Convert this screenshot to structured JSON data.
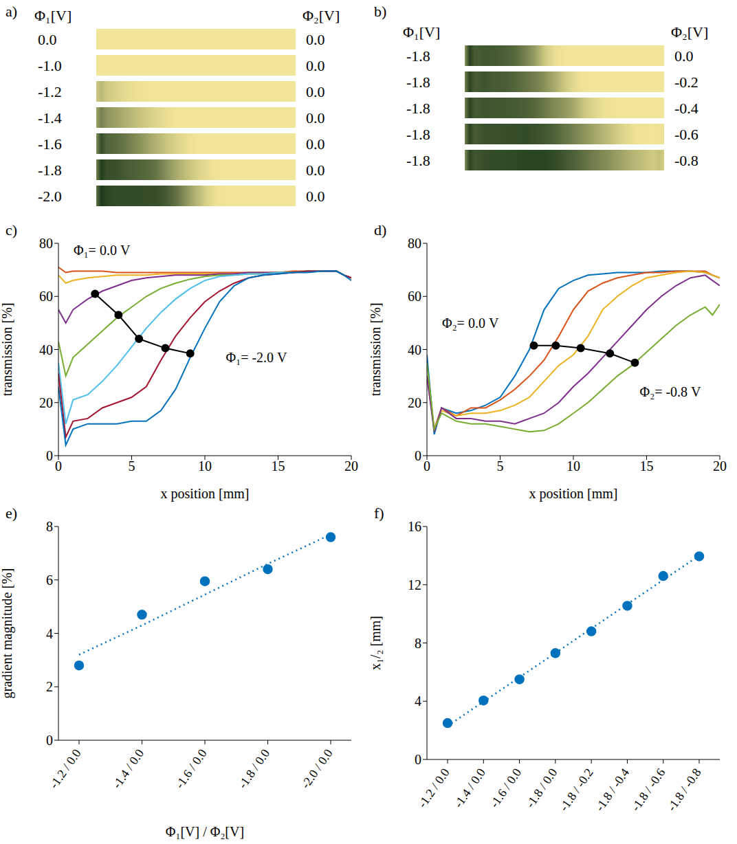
{
  "strip_panels": [
    {
      "panel": "a)",
      "left_header": "Φ₁[V]",
      "right_header": "Φ₂[V]",
      "rows": [
        [
          "0.0",
          "0.0"
        ],
        [
          "-1.0",
          "0.0"
        ],
        [
          "-1.2",
          "0.0"
        ],
        [
          "-1.4",
          "0.0"
        ],
        [
          "-1.6",
          "0.0"
        ],
        [
          "-1.8",
          "0.0"
        ],
        [
          "-2.0",
          "0.0"
        ]
      ]
    },
    {
      "panel": "b)",
      "left_header": "Φ₁[V]",
      "right_header": "Φ₂[V]",
      "rows": [
        [
          "-1.8",
          "0.0"
        ],
        [
          "-1.8",
          "-0.2"
        ],
        [
          "-1.8",
          "-0.4"
        ],
        [
          "-1.8",
          "-0.6"
        ],
        [
          "-1.8",
          "-0.8"
        ]
      ]
    }
  ],
  "chart_data": [
    {
      "panel": "c)",
      "type": "line",
      "x_label": "x position [mm]",
      "y_label": "transmission [%]",
      "xlim": [
        0,
        20
      ],
      "xticks": [
        0,
        5,
        10,
        15,
        20
      ],
      "ylim": [
        0,
        80
      ],
      "yticks": [
        0,
        20,
        40,
        60,
        80
      ],
      "grid": false,
      "x": [
        0,
        0.5,
        1,
        2,
        3,
        4,
        5,
        6,
        7,
        8,
        9,
        10,
        11,
        12,
        13,
        14,
        15,
        16,
        17,
        18,
        19,
        19.5,
        20
      ],
      "series": [
        {
          "color": "#D95319",
          "values": [
            71,
            69,
            69.5,
            69.5,
            69.5,
            69,
            69,
            69,
            69,
            69,
            69,
            69,
            69,
            69,
            69,
            69,
            69,
            69.5,
            69.5,
            69.5,
            69.5,
            68,
            67
          ]
        },
        {
          "color": "#EDB120",
          "values": [
            68,
            65,
            66,
            67,
            67.5,
            68,
            68,
            68,
            68.5,
            68.5,
            68.5,
            68.5,
            68.5,
            68.5,
            69,
            69,
            69,
            69,
            69.5,
            69.5,
            69.5,
            68,
            67
          ]
        },
        {
          "color": "#7E2F8E",
          "values": [
            55,
            50,
            55,
            59,
            62,
            64,
            66,
            67,
            67.5,
            68,
            68,
            68,
            68.5,
            68.5,
            69,
            69,
            69,
            69,
            69.5,
            69.5,
            69.5,
            68,
            67
          ]
        },
        {
          "color": "#77AC30",
          "values": [
            43,
            30,
            37,
            42,
            47,
            52,
            56,
            60,
            63,
            65,
            66.5,
            67.5,
            68,
            68,
            68.5,
            68.5,
            69,
            69,
            69.5,
            69.5,
            69.5,
            68,
            67
          ]
        },
        {
          "color": "#4DBEEE",
          "values": [
            35,
            12,
            21,
            23,
            28,
            34,
            41,
            48,
            54,
            59,
            63,
            66,
            67.5,
            68,
            68.5,
            68.5,
            69,
            69,
            69.5,
            69.5,
            69.5,
            68,
            67
          ]
        },
        {
          "color": "#A2142F",
          "values": [
            31,
            7,
            13,
            14,
            18,
            20,
            22,
            26,
            36,
            45,
            52,
            58,
            62,
            65,
            67,
            68,
            68.5,
            69,
            69.5,
            69.5,
            69.5,
            68,
            67
          ]
        },
        {
          "color": "#0072BD",
          "values": [
            26,
            4,
            10,
            12,
            12,
            12,
            13,
            13,
            17,
            25,
            37,
            48,
            58,
            64,
            67,
            68,
            68.5,
            69,
            69,
            69.5,
            69.5,
            68,
            66
          ]
        }
      ],
      "points": {
        "x": [
          2.5,
          4.1,
          5.5,
          7.3,
          9
        ],
        "y": [
          61,
          53,
          44,
          40.5,
          38.5
        ],
        "color": "#000000",
        "marker": "circle",
        "line_style": "solid"
      },
      "annotations": [
        {
          "text": "Φ₁= 0.0 V",
          "x": 0.8,
          "y": 77.5
        },
        {
          "text": "Φ₁= -2.0 V",
          "x": 11.2,
          "y": 37
        }
      ]
    },
    {
      "panel": "d)",
      "type": "line",
      "x_label": "x position [mm]",
      "y_label": "transmission [%]",
      "xlim": [
        0,
        20
      ],
      "xticks": [
        0,
        5,
        10,
        15,
        20
      ],
      "ylim": [
        0,
        80
      ],
      "yticks": [
        0,
        20,
        40,
        60,
        80
      ],
      "grid": false,
      "x": [
        0,
        0.5,
        1,
        2,
        3,
        4,
        5,
        6,
        7,
        8,
        9,
        10,
        11,
        12,
        13,
        14,
        15,
        16,
        17,
        18,
        19,
        19.5,
        20
      ],
      "series": [
        {
          "color": "#0072BD",
          "values": [
            38,
            8,
            18,
            16,
            17,
            19,
            22,
            30,
            40,
            55,
            63,
            66,
            68,
            68.5,
            69,
            69,
            69,
            69.5,
            69.5,
            69.5,
            69,
            68,
            67
          ]
        },
        {
          "color": "#D95319",
          "values": [
            30,
            10,
            18,
            15,
            18,
            18,
            21,
            25,
            30,
            36,
            45,
            55,
            62,
            65,
            67,
            68,
            69,
            69,
            69.5,
            69.5,
            69.5,
            68,
            67
          ]
        },
        {
          "color": "#EDB120",
          "values": [
            30,
            10,
            17,
            15,
            16,
            16,
            17,
            19,
            22,
            28,
            34,
            38,
            45,
            55,
            60,
            64,
            67,
            68,
            69,
            69.5,
            69,
            68,
            67
          ]
        },
        {
          "color": "#7E2F8E",
          "values": [
            30,
            9,
            18,
            14,
            14,
            13,
            13,
            12,
            14,
            16,
            20,
            26,
            31,
            37,
            43,
            49,
            55,
            60,
            64,
            67,
            68,
            66,
            64
          ]
        },
        {
          "color": "#77AC30",
          "values": [
            35,
            10,
            16,
            13,
            12,
            12,
            11,
            10,
            9,
            9.5,
            12,
            16,
            20,
            25,
            30,
            34,
            39,
            44,
            49,
            53,
            56,
            53,
            57
          ]
        }
      ],
      "points": {
        "x": [
          7.3,
          8.8,
          10.5,
          12.5,
          14.2
        ],
        "y": [
          41.5,
          41.5,
          40.5,
          38.5,
          35
        ],
        "color": "#000000",
        "marker": "circle",
        "line_style": "solid"
      },
      "annotations": [
        {
          "text": "Φ₂= 0.0 V",
          "x": 0.8,
          "y": 50
        },
        {
          "text": "Φ₂= -0.8 V",
          "x": 14.3,
          "y": 24
        }
      ]
    },
    {
      "panel": "e)",
      "type": "scatter",
      "x_label": "Φ₁[V] / Φ₂[V]",
      "y_label": "gradient magnitude [%]",
      "categories": [
        "-1.2 / 0.0",
        "-1.4 / 0.0",
        "-1.6 / 0.0",
        "-1.8 / 0.0",
        "-2.0 / 0.0"
      ],
      "ylim": [
        0,
        8
      ],
      "yticks": [
        0,
        2,
        4,
        6,
        8
      ],
      "grid": false,
      "series": [
        {
          "color": "#0072BD",
          "marker": "circle",
          "line_style": "none",
          "values": [
            2.8,
            4.7,
            5.95,
            6.4,
            7.6
          ]
        },
        {
          "color": "#0072BD",
          "marker": "none",
          "line_style": "dotted",
          "values": [
            3.2,
            4.3,
            5.45,
            6.6,
            7.7
          ]
        }
      ]
    },
    {
      "panel": "f)",
      "type": "scatter",
      "y_label": "x₁/₂ [mm]",
      "categories": [
        "-1.2 / 0.0",
        "-1.4 / 0.0",
        "-1.6 / 0.0",
        "-1.8 / 0.0",
        "-1.8 / -0.2",
        "-1.8 / -0.4",
        "-1.8 / -0.6",
        "-1.8 / -0.8"
      ],
      "ylim": [
        0,
        16
      ],
      "yticks": [
        0,
        4,
        8,
        12,
        16
      ],
      "grid": false,
      "series": [
        {
          "color": "#0072BD",
          "marker": "circle",
          "line_style": "none",
          "values": [
            2.5,
            4.05,
            5.5,
            7.3,
            8.8,
            10.55,
            12.6,
            13.95
          ]
        },
        {
          "color": "#0072BD",
          "marker": "none",
          "line_style": "dotted",
          "values": [
            2.3,
            3.97,
            5.64,
            7.31,
            8.99,
            10.66,
            12.33,
            14.0
          ]
        }
      ]
    }
  ]
}
